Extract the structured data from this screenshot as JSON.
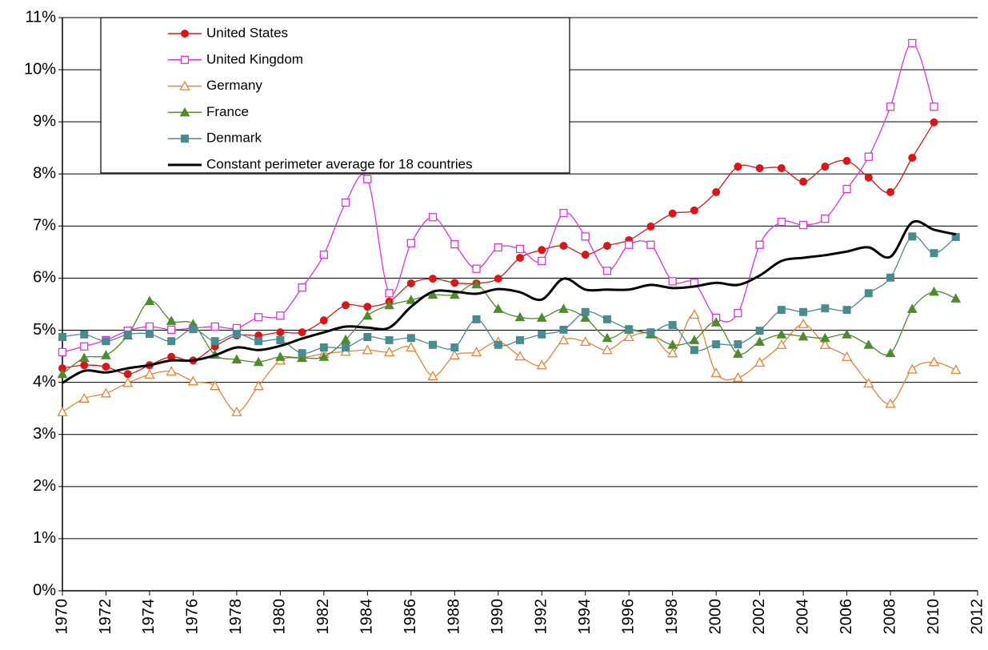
{
  "chart_data": {
    "type": "line",
    "x": [
      1970,
      1971,
      1972,
      1973,
      1974,
      1975,
      1976,
      1977,
      1978,
      1979,
      1980,
      1981,
      1982,
      1983,
      1984,
      1985,
      1986,
      1987,
      1988,
      1989,
      1990,
      1991,
      1992,
      1993,
      1994,
      1995,
      1996,
      1997,
      1998,
      1999,
      2000,
      2001,
      2002,
      2003,
      2004,
      2005,
      2006,
      2007,
      2008,
      2009,
      2010,
      2011
    ],
    "xlim": [
      1970,
      2012
    ],
    "xticks": [
      1970,
      1972,
      1974,
      1976,
      1978,
      1980,
      1982,
      1984,
      1986,
      1988,
      1990,
      1992,
      1994,
      1996,
      1998,
      2000,
      2002,
      2004,
      2006,
      2008,
      2010,
      2012
    ],
    "ylim": [
      0,
      11
    ],
    "yticks": [
      {
        "value": 0,
        "label": "0%"
      },
      {
        "value": 1,
        "label": "1%"
      },
      {
        "value": 2,
        "label": "2%"
      },
      {
        "value": 3,
        "label": "3%"
      },
      {
        "value": 4,
        "label": "4%"
      },
      {
        "value": 5,
        "label": "5%"
      },
      {
        "value": 6,
        "label": "6%"
      },
      {
        "value": 7,
        "label": "7%"
      },
      {
        "value": 8,
        "label": "8%"
      },
      {
        "value": 9,
        "label": "9%"
      },
      {
        "value": 10,
        "label": "10%"
      },
      {
        "value": 11,
        "label": "11%"
      }
    ],
    "grid": true,
    "legend": "upper left",
    "series": [
      {
        "name": "United States",
        "color": "#d81818",
        "marker": "circle",
        "values": [
          4.27,
          4.33,
          4.3,
          4.16,
          4.33,
          4.49,
          4.42,
          4.69,
          4.9,
          4.9,
          4.96,
          4.96,
          5.19,
          5.48,
          5.45,
          5.55,
          5.9,
          5.99,
          5.91,
          5.9,
          5.99,
          6.39,
          6.54,
          6.62,
          6.45,
          6.62,
          6.73,
          6.99,
          7.24,
          7.3,
          7.65,
          8.14,
          8.11,
          8.11,
          7.85,
          8.14,
          8.25,
          7.93,
          7.65,
          8.31,
          8.99,
          null
        ]
      },
      {
        "name": "United Kingdom",
        "color": "#dd33dd",
        "marker": "square-open",
        "values": [
          4.58,
          4.69,
          4.81,
          4.99,
          5.07,
          5.01,
          5.04,
          5.07,
          5.04,
          5.25,
          5.28,
          5.82,
          6.45,
          7.45,
          7.9,
          5.71,
          6.67,
          7.17,
          6.65,
          6.18,
          6.59,
          6.56,
          6.33,
          7.25,
          6.8,
          6.14,
          6.64,
          6.64,
          5.94,
          5.91,
          5.24,
          5.33,
          6.64,
          7.08,
          7.02,
          7.14,
          7.71,
          8.33,
          9.29,
          10.51,
          9.29,
          null
        ]
      },
      {
        "name": "Germany",
        "color": "#e8823a",
        "marker": "triangle-open",
        "values": [
          3.43,
          3.69,
          3.79,
          3.99,
          4.15,
          4.21,
          4.02,
          3.93,
          3.43,
          3.93,
          4.42,
          4.47,
          4.55,
          4.59,
          4.62,
          4.58,
          4.67,
          4.12,
          4.52,
          4.58,
          4.78,
          4.5,
          4.33,
          4.81,
          4.78,
          4.62,
          4.87,
          4.93,
          4.56,
          5.3,
          4.18,
          4.09,
          4.38,
          4.72,
          5.12,
          4.72,
          4.49,
          3.98,
          3.59,
          4.25,
          4.39,
          4.24
        ]
      },
      {
        "name": "France",
        "color": "#4e8a2e",
        "marker": "triangle",
        "values": [
          4.16,
          4.47,
          4.52,
          4.9,
          5.56,
          5.18,
          5.12,
          4.53,
          4.44,
          4.39,
          4.49,
          4.47,
          4.49,
          4.82,
          5.28,
          5.48,
          5.58,
          5.68,
          5.68,
          5.88,
          5.41,
          5.25,
          5.24,
          5.41,
          5.24,
          4.85,
          5.01,
          4.92,
          4.72,
          4.81,
          5.15,
          4.55,
          4.78,
          4.92,
          4.88,
          4.85,
          4.92,
          4.72,
          4.56,
          5.41,
          5.74,
          5.61
        ]
      },
      {
        "name": "Denmark",
        "color": "#4a8b8f",
        "marker": "square",
        "values": [
          4.87,
          4.92,
          4.79,
          4.92,
          4.93,
          4.79,
          5.02,
          4.79,
          4.93,
          4.79,
          4.81,
          4.56,
          4.67,
          4.67,
          4.87,
          4.81,
          4.85,
          4.72,
          4.67,
          5.21,
          4.72,
          4.81,
          4.92,
          5.01,
          5.35,
          5.21,
          5.02,
          4.96,
          5.1,
          4.62,
          4.73,
          4.73,
          4.99,
          5.39,
          5.35,
          5.42,
          5.39,
          5.71,
          6.01,
          6.8,
          6.48,
          6.79
        ]
      },
      {
        "name": "Constant perimeter average for 18 countries",
        "color": "#000000",
        "values": [
          3.99,
          4.22,
          4.19,
          4.27,
          4.33,
          4.42,
          4.42,
          4.52,
          4.67,
          4.62,
          4.7,
          4.84,
          4.96,
          5.07,
          5.05,
          5.05,
          5.45,
          5.74,
          5.74,
          5.7,
          5.79,
          5.73,
          5.59,
          5.99,
          5.78,
          5.78,
          5.78,
          5.87,
          5.81,
          5.84,
          5.91,
          5.87,
          6.05,
          6.33,
          6.39,
          6.44,
          6.51,
          6.59,
          6.41,
          7.07,
          6.93,
          6.84
        ]
      }
    ]
  }
}
